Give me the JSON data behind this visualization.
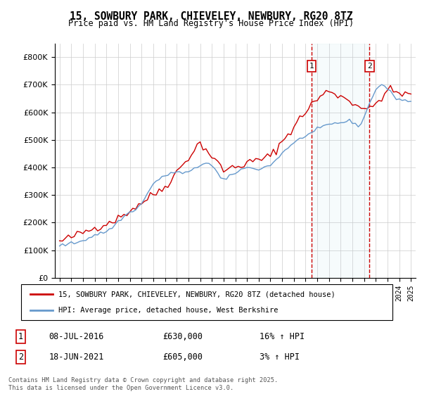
{
  "title": "15, SOWBURY PARK, CHIEVELEY, NEWBURY, RG20 8TZ",
  "subtitle": "Price paid vs. HM Land Registry's House Price Index (HPI)",
  "legend_line1": "15, SOWBURY PARK, CHIEVELEY, NEWBURY, RG20 8TZ (detached house)",
  "legend_line2": "HPI: Average price, detached house, West Berkshire",
  "annotation1_date": "08-JUL-2016",
  "annotation1_price": "£630,000",
  "annotation1_hpi": "16% ↑ HPI",
  "annotation2_date": "18-JUN-2021",
  "annotation2_price": "£605,000",
  "annotation2_hpi": "3% ↑ HPI",
  "footer": "Contains HM Land Registry data © Crown copyright and database right 2025.\nThis data is licensed under the Open Government Licence v3.0.",
  "red_color": "#cc0000",
  "blue_color": "#6699cc",
  "grid_color": "#cccccc",
  "annotation_vline_color": "#cc0000",
  "sale1_year": 2016.52,
  "sale2_year": 2021.46,
  "ylim_min": 0,
  "ylim_max": 850000
}
